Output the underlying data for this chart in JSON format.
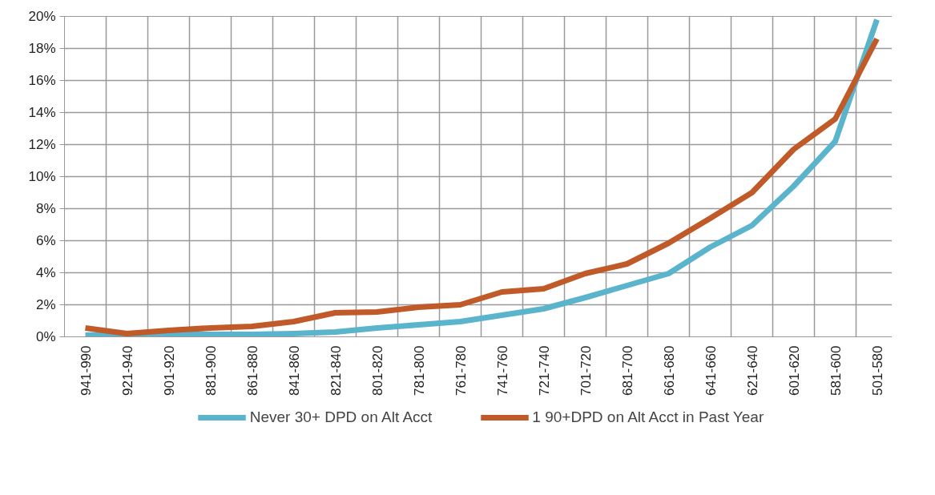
{
  "chart_data": {
    "type": "line",
    "categories": [
      "941-990",
      "921-940",
      "901-920",
      "881-900",
      "861-880",
      "841-860",
      "821-840",
      "801-820",
      "781-800",
      "761-780",
      "741-760",
      "721-740",
      "701-720",
      "681-700",
      "661-680",
      "641-660",
      "621-640",
      "601-620",
      "581-600",
      "501-580"
    ],
    "series": [
      {
        "name": "Never 30+ DPD on Alt Acct",
        "color": "#5ab4cc",
        "values": [
          0.1,
          0.15,
          0.15,
          0.15,
          0.15,
          0.2,
          0.3,
          0.55,
          0.75,
          0.95,
          1.35,
          1.75,
          2.45,
          3.2,
          3.95,
          5.6,
          6.95,
          9.4,
          12.2,
          19.8
        ]
      },
      {
        "name": "1 90+DPD on Alt Acct in Past Year",
        "color": "#c05a28",
        "values": [
          0.55,
          0.2,
          0.4,
          0.55,
          0.65,
          0.95,
          1.5,
          1.55,
          1.85,
          2.0,
          2.8,
          3.0,
          3.95,
          4.55,
          5.85,
          7.4,
          9.0,
          11.7,
          13.6,
          18.6
        ]
      }
    ],
    "ylim": [
      0,
      20
    ],
    "yticks": [
      {
        "value": 0,
        "label": "0%"
      },
      {
        "value": 2,
        "label": "2%"
      },
      {
        "value": 4,
        "label": "4%"
      },
      {
        "value": 6,
        "label": "6%"
      },
      {
        "value": 8,
        "label": "8%"
      },
      {
        "value": 10,
        "label": "10%"
      },
      {
        "value": 12,
        "label": "12%"
      },
      {
        "value": 14,
        "label": "14%"
      },
      {
        "value": 16,
        "label": "16%"
      },
      {
        "value": 18,
        "label": "18%"
      },
      {
        "value": 20,
        "label": "20%"
      }
    ],
    "grid": true,
    "legend": "bottom",
    "marker": "none",
    "line_style": "solid"
  }
}
